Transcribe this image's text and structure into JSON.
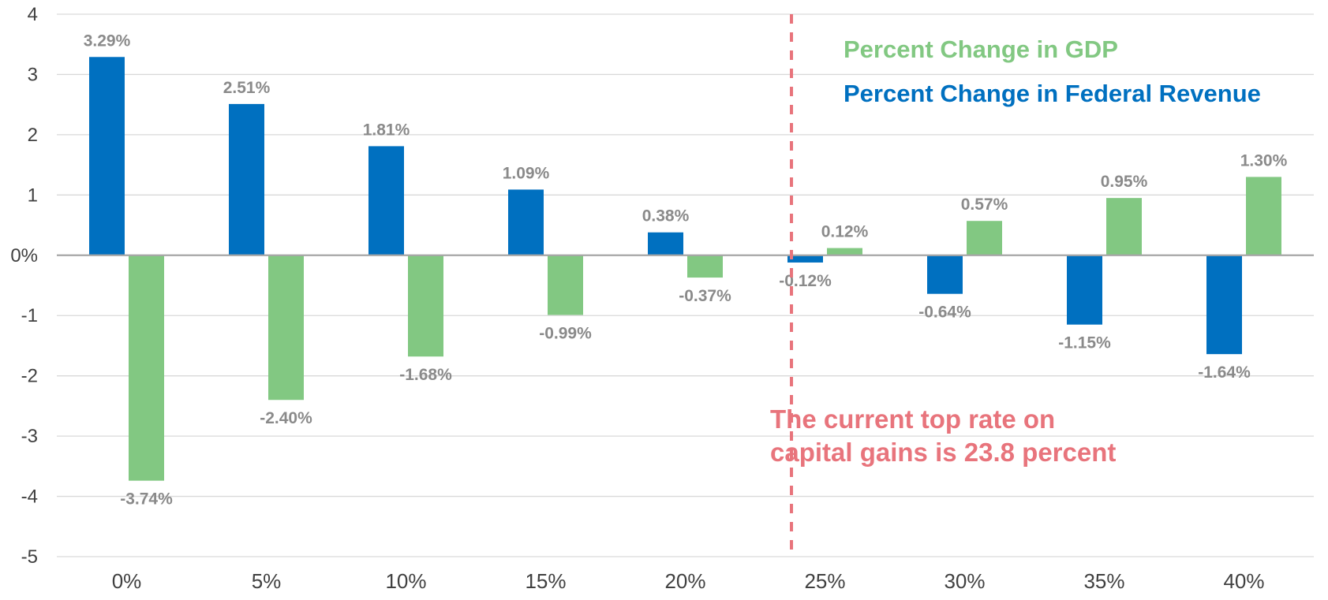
{
  "chart_data": {
    "type": "bar",
    "categories": [
      "0%",
      "5%",
      "10%",
      "15%",
      "20%",
      "25%",
      "30%",
      "35%",
      "40%"
    ],
    "series": [
      {
        "name": "Percent Change in Federal Revenue",
        "color": "#0070c0",
        "values": [
          3.29,
          2.51,
          1.81,
          1.09,
          0.38,
          -0.12,
          -0.64,
          -1.15,
          -1.64
        ],
        "labels": [
          "3.29%",
          "2.51%",
          "1.81%",
          "1.09%",
          "0.38%",
          "-0.12%",
          "-0.64%",
          "-1.15%",
          "-1.64%"
        ]
      },
      {
        "name": "Percent Change in GDP",
        "color": "#82c882",
        "values": [
          -3.74,
          -2.4,
          -1.68,
          -0.99,
          -0.37,
          0.12,
          0.57,
          0.95,
          1.3
        ],
        "labels": [
          "-3.74%",
          "-2.40%",
          "-1.68%",
          "-0.99%",
          "-0.37%",
          "0.12%",
          "0.57%",
          "0.95%",
          "1.30%"
        ]
      }
    ],
    "yticks": [
      "4",
      "3",
      "2",
      "1",
      "0%",
      "-1",
      "-2",
      "-3",
      "-4",
      "-5"
    ],
    "ylim": [
      -5,
      4
    ],
    "grid": true,
    "legend_position": "top-right",
    "reference_line": {
      "position": 23.8,
      "style": "dashed",
      "color": "#e8747c"
    },
    "annotation": {
      "lines": [
        "The current top rate on",
        "capital gains is 23.8 percent"
      ],
      "color": "#e8747c"
    }
  }
}
